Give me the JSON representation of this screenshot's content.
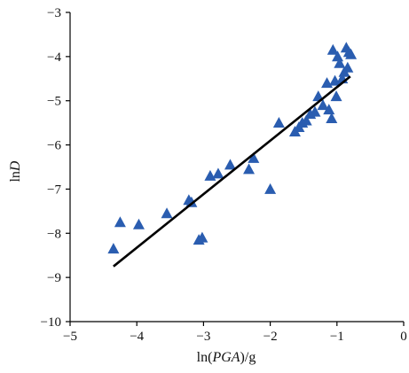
{
  "chart_data": {
    "type": "scatter",
    "title": "",
    "xlabel": {
      "prefix": "ln(",
      "italic": "PGA",
      "suffix": ")/g"
    },
    "ylabel": {
      "prefix": "ln",
      "italic": "D",
      "suffix": ""
    },
    "xlim": [
      -5,
      0
    ],
    "ylim": [
      -10,
      -3
    ],
    "xticks": [
      -5,
      -4,
      -3,
      -2,
      -1,
      0
    ],
    "yticks": [
      -3,
      -4,
      -5,
      -6,
      -7,
      -8,
      -9,
      -10
    ],
    "xtick_labels": [
      "−5",
      "−4",
      "−3",
      "−2",
      "−1",
      "0"
    ],
    "ytick_labels": [
      "−3",
      "−4",
      "−5",
      "−6",
      "−7",
      "−8",
      "−9",
      "−10"
    ],
    "grid": false,
    "marker_color": "#2a5db0",
    "line_color": "#000000",
    "series": [
      {
        "marker": "triangle",
        "x": [
          -4.35,
          -4.25,
          -3.97,
          -3.55,
          -3.22,
          -3.18,
          -3.07,
          -3.02,
          -2.9,
          -2.78,
          -2.6,
          -2.32,
          -2.25,
          -2.0,
          -1.87,
          -1.63,
          -1.57,
          -1.52,
          -1.46,
          -1.4,
          -1.33,
          -1.28,
          -1.21,
          -1.15,
          -1.12,
          -1.08,
          -1.06,
          -1.03,
          -1.01,
          -0.99,
          -0.96,
          -0.92,
          -0.89,
          -0.86,
          -0.84,
          -0.82,
          -0.79
        ],
        "y": [
          -8.35,
          -7.75,
          -7.8,
          -7.55,
          -7.25,
          -7.3,
          -8.15,
          -8.1,
          -6.7,
          -6.65,
          -6.45,
          -6.55,
          -6.3,
          -7.0,
          -5.5,
          -5.7,
          -5.6,
          -5.5,
          -5.45,
          -5.3,
          -5.25,
          -4.9,
          -5.1,
          -4.6,
          -5.2,
          -5.4,
          -3.85,
          -4.55,
          -4.9,
          -4.0,
          -4.15,
          -4.5,
          -4.35,
          -3.8,
          -4.25,
          -3.9,
          -3.95
        ]
      }
    ],
    "fit_line": {
      "x": [
        -4.35,
        -0.8
      ],
      "y": [
        -8.75,
        -4.45
      ]
    }
  }
}
